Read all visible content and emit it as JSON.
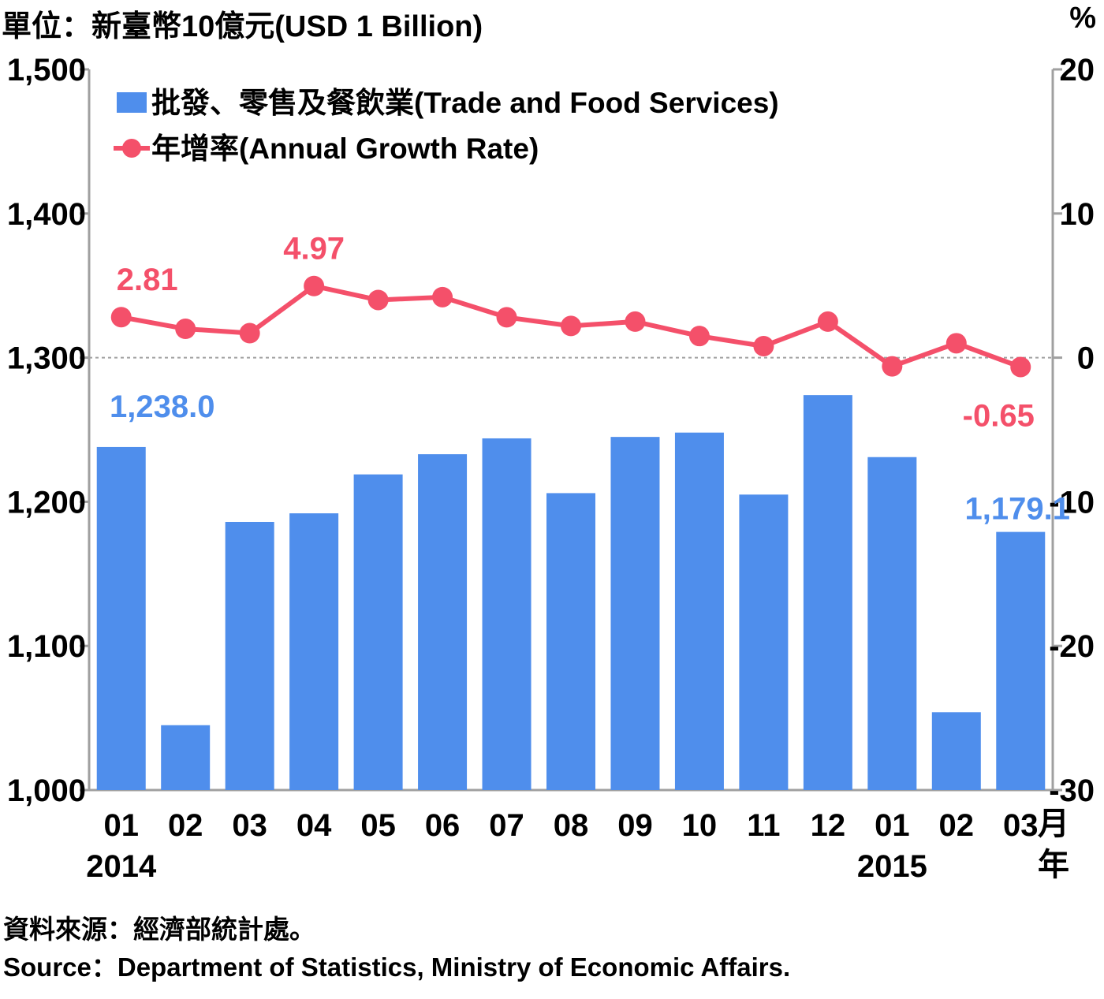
{
  "header": {
    "unit_left": "單位：新臺幣10億元(USD 1 Billion)",
    "unit_right": "%"
  },
  "footer": {
    "source_zh": "資料來源：經濟部統計處。",
    "source_en": "Source：Department of Statistics, Ministry of Economic Affairs."
  },
  "colors": {
    "bar": "#4f8eec",
    "line": "#f4506a",
    "axis": "#a0a0a0",
    "zero_line": "#a0a0a0"
  },
  "chart_data": {
    "type": "bar",
    "categories": [
      "01",
      "02",
      "03",
      "04",
      "05",
      "06",
      "07",
      "08",
      "09",
      "10",
      "11",
      "12",
      "01",
      "02",
      "03"
    ],
    "x_unit_label": [
      "月",
      "年"
    ],
    "year_labels": [
      {
        "index": 0,
        "label": "2014"
      },
      {
        "index": 12,
        "label": "2015"
      }
    ],
    "ylim_left": [
      1000,
      1500
    ],
    "yticks_left": [
      "1,000",
      "1,100",
      "1,200",
      "1,300",
      "1,400",
      "1,500"
    ],
    "ylim_right": [
      -30,
      20
    ],
    "yticks_right": [
      "-30",
      "-20",
      "-10",
      "0",
      "10",
      "20"
    ],
    "series": [
      {
        "name": "批發、零售及餐飲業(Trade and Food Services)",
        "type": "bar",
        "axis": "left",
        "values": [
          1238.0,
          1045,
          1186,
          1192,
          1219,
          1233,
          1244,
          1206,
          1245,
          1248,
          1205,
          1274,
          1231,
          1054,
          1179.1
        ],
        "labels": [
          {
            "index": 0,
            "text": "1,238.0"
          },
          {
            "index": 14,
            "text": "1,179.1"
          }
        ]
      },
      {
        "name": "年增率(Annual Growth Rate)",
        "type": "line",
        "axis": "right",
        "values": [
          2.81,
          2.0,
          1.7,
          4.97,
          4.0,
          4.2,
          2.8,
          2.2,
          2.5,
          1.5,
          0.8,
          2.5,
          -0.6,
          1.0,
          -0.65
        ],
        "labels": [
          {
            "index": 0,
            "text": "2.81"
          },
          {
            "index": 3,
            "text": "4.97"
          },
          {
            "index": 14,
            "text": "-0.65"
          }
        ]
      }
    ],
    "legend_position": "top-left",
    "grid": false
  }
}
